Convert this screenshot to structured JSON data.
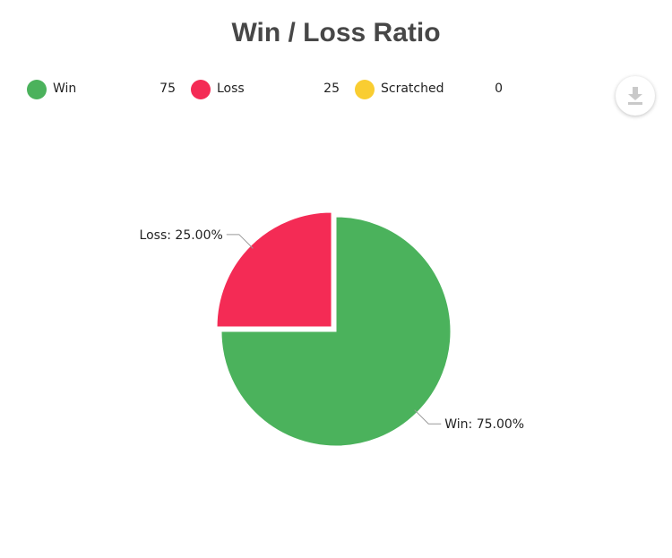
{
  "chart_data": {
    "type": "pie",
    "title": "Win / Loss Ratio",
    "series": [
      {
        "name": "Win",
        "value": 75,
        "color": "#4bb25c",
        "label": "Win: 75.00%"
      },
      {
        "name": "Loss",
        "value": 25,
        "color": "#f42b55",
        "label": "Loss: 25.00%"
      },
      {
        "name": "Scratched",
        "value": 0,
        "color": "#f9cd31",
        "label": ""
      }
    ],
    "legend_position": "top-left"
  },
  "legend": {
    "items": [
      {
        "name": "Win",
        "value": "75",
        "color": "#4bb25c"
      },
      {
        "name": "Loss",
        "value": "25",
        "color": "#f42b55"
      },
      {
        "name": "Scratched",
        "value": "0",
        "color": "#f9cd31"
      }
    ]
  },
  "toolbar": {
    "download_icon": "download-icon"
  }
}
